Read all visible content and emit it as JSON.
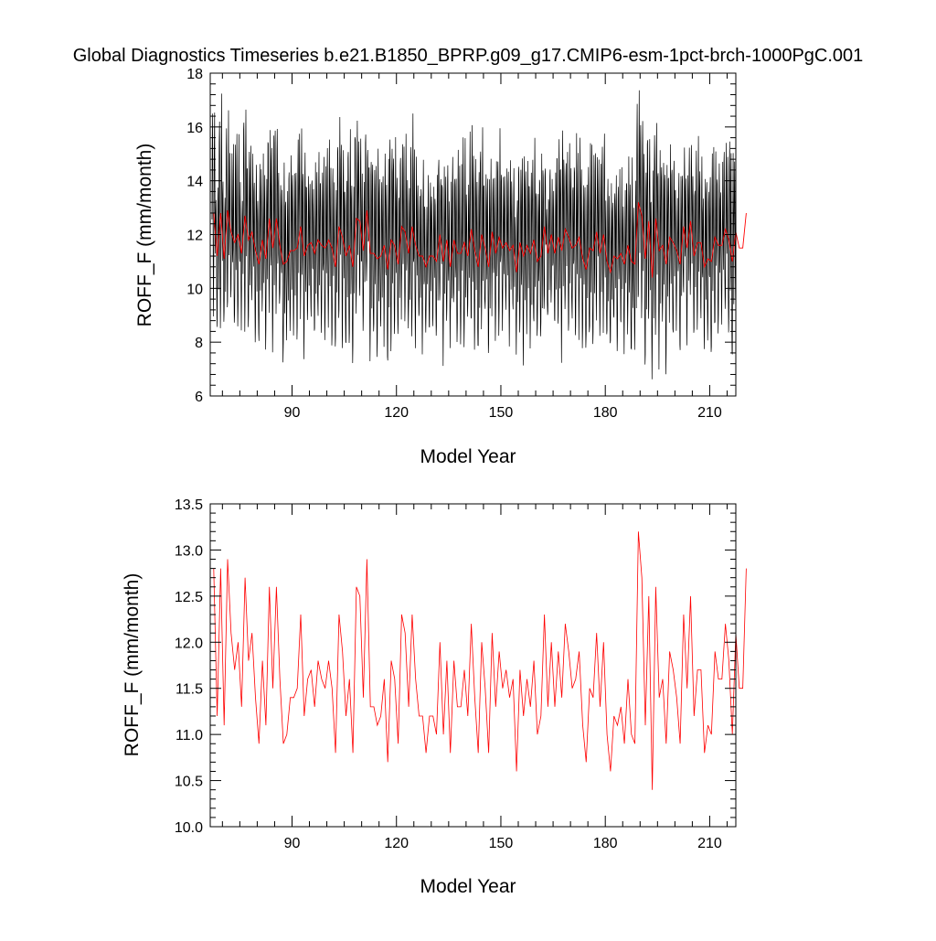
{
  "title": "Global Diagnostics Timeseries b.e21.B1850_BPRP.g09_g17.CMIP6-esm-1pct-brch-1000PgC.001",
  "colors": {
    "monthly": "#000000",
    "annual": "#ff0000",
    "axes": "#000000"
  },
  "chart_data": [
    {
      "type": "line",
      "panel": "monthly-and-annual",
      "xlabel": "Model Year",
      "ylabel": "ROFF_F (mm/month)",
      "xlim": [
        66.5,
        217.5
      ],
      "ylim": [
        6,
        18
      ],
      "xticks": [
        90,
        120,
        150,
        180,
        210
      ],
      "yticks": [
        6,
        8,
        10,
        12,
        14,
        16,
        18
      ],
      "grid": false,
      "series": [
        {
          "role": "monthly",
          "color": "#000000",
          "start_year": 67,
          "note": "monthly values oscillate seasonally between roughly 8.5 and 16"
        },
        {
          "role": "annual",
          "color": "#ff0000",
          "source": "annual"
        }
      ]
    },
    {
      "type": "line",
      "panel": "annual",
      "xlabel": "Model Year",
      "ylabel": "ROFF_F (mm/month)",
      "xlim": [
        66.5,
        217.5
      ],
      "ylim": [
        10.0,
        13.5
      ],
      "xticks": [
        90,
        120,
        150,
        180,
        210
      ],
      "yticks": [
        10.0,
        10.5,
        11.0,
        11.5,
        12.0,
        12.5,
        13.0,
        13.5
      ],
      "grid": false,
      "annual": {
        "color": "#ff0000",
        "start_year": 67,
        "values": [
          12.8,
          11.2,
          12.8,
          11.1,
          12.9,
          12.1,
          11.7,
          12.0,
          11.3,
          12.7,
          11.8,
          12.1,
          11.4,
          10.9,
          11.8,
          11.1,
          12.6,
          11.5,
          12.6,
          11.6,
          10.9,
          11.0,
          11.4,
          11.4,
          11.5,
          12.3,
          11.2,
          11.6,
          11.7,
          11.3,
          11.8,
          11.6,
          11.5,
          11.8,
          11.5,
          10.8,
          12.3,
          11.9,
          11.2,
          11.6,
          10.8,
          12.6,
          12.5,
          11.4,
          12.9,
          11.3,
          11.3,
          11.1,
          11.2,
          11.6,
          10.7,
          11.8,
          11.6,
          10.9,
          12.3,
          12.1,
          11.3,
          12.3,
          11.6,
          11.2,
          11.2,
          10.8,
          11.2,
          11.2,
          11.0,
          12.0,
          11.0,
          11.8,
          10.8,
          11.8,
          11.3,
          11.3,
          11.7,
          11.2,
          12.2,
          11.4,
          10.8,
          12.0,
          11.5,
          10.8,
          12.1,
          11.3,
          11.9,
          11.5,
          11.7,
          11.4,
          11.6,
          10.6,
          11.7,
          11.2,
          11.6,
          11.3,
          11.8,
          11.0,
          11.2,
          12.3,
          11.3,
          12.0,
          11.3,
          11.9,
          11.4,
          12.2,
          11.9,
          11.5,
          11.6,
          11.9,
          11.1,
          10.7,
          11.5,
          11.4,
          12.1,
          11.3,
          12.0,
          11.0,
          10.6,
          11.2,
          11.1,
          11.3,
          10.9,
          11.6,
          11.0,
          10.9,
          13.2,
          12.7,
          11.1,
          12.5,
          10.4,
          12.6,
          11.4,
          11.6,
          10.9,
          11.9,
          11.7,
          11.4,
          10.9,
          12.3,
          11.5,
          12.5,
          11.2,
          11.7,
          11.7,
          10.8,
          11.1,
          11.0,
          11.9,
          11.6,
          11.6,
          12.2,
          11.8,
          11.0,
          12.1,
          11.5,
          11.5,
          12.8
        ]
      }
    }
  ]
}
